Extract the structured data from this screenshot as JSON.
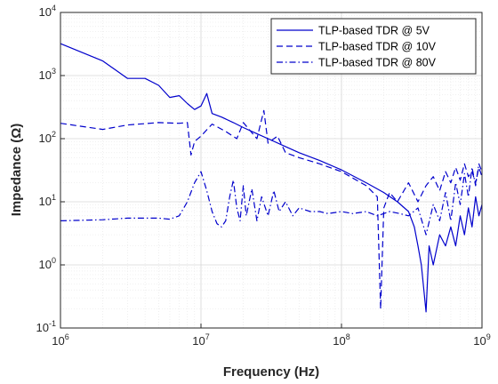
{
  "chart_data": {
    "type": "line",
    "title": "",
    "xlabel": "Frequency (Hz)",
    "ylabel": "Impedance  (Ω)",
    "xscale": "log",
    "yscale": "log",
    "xlim": [
      1000000,
      1000000000
    ],
    "ylim": [
      0.1,
      10000
    ],
    "x_ticks": [
      {
        "value": 1000000,
        "base": "10",
        "exp": "6"
      },
      {
        "value": 10000000,
        "base": "10",
        "exp": "7"
      },
      {
        "value": 100000000,
        "base": "10",
        "exp": "8"
      },
      {
        "value": 1000000000,
        "base": "10",
        "exp": "9"
      }
    ],
    "y_ticks": [
      {
        "value": 0.1,
        "base": "10",
        "exp": "-1"
      },
      {
        "value": 1,
        "base": "10",
        "exp": "0"
      },
      {
        "value": 10,
        "base": "10",
        "exp": "1"
      },
      {
        "value": 100,
        "base": "10",
        "exp": "2"
      },
      {
        "value": 1000,
        "base": "10",
        "exp": "3"
      },
      {
        "value": 10000,
        "base": "10",
        "exp": "4"
      }
    ],
    "grid": true,
    "minor_grid": true,
    "legend_position": "top-right",
    "line_color": "#0000cc",
    "series": [
      {
        "name": "TLP-based TDR @ 5V",
        "dash": "solid",
        "x": [
          1000000,
          2000000,
          3000000,
          4000000,
          5000000,
          6000000,
          7000000,
          8000000,
          9000000,
          10000000,
          11000000,
          12000000,
          14000000,
          17000000,
          20000000,
          25000000,
          30000000,
          40000000,
          50000000,
          70000000,
          100000000,
          150000000,
          200000000,
          250000000,
          300000000,
          330000000,
          350000000,
          370000000,
          400000000,
          420000000,
          450000000,
          500000000,
          550000000,
          600000000,
          650000000,
          700000000,
          750000000,
          800000000,
          850000000,
          900000000,
          950000000,
          1000000000
        ],
        "y": [
          3200,
          1700,
          900,
          900,
          700,
          450,
          480,
          360,
          290,
          330,
          520,
          250,
          220,
          180,
          150,
          120,
          100,
          75,
          60,
          45,
          32,
          20,
          14,
          10,
          7,
          4,
          2,
          1,
          0.18,
          2,
          1,
          3,
          2,
          4,
          2,
          6,
          3,
          8,
          4,
          12,
          6,
          9
        ]
      },
      {
        "name": "TLP-based TDR @ 10V",
        "dash": "dashed",
        "x": [
          1000000,
          2000000,
          3000000,
          5000000,
          7000000,
          8000000,
          8500000,
          9000000,
          10000000,
          12000000,
          15000000,
          18000000,
          20000000,
          25000000,
          28000000,
          30000000,
          35000000,
          40000000,
          50000000,
          70000000,
          100000000,
          150000000,
          180000000,
          190000000,
          200000000,
          220000000,
          250000000,
          300000000,
          350000000,
          400000000,
          450000000,
          500000000,
          550000000,
          600000000,
          650000000,
          700000000,
          750000000,
          800000000,
          850000000,
          900000000,
          950000000,
          1000000000
        ],
        "y": [
          175,
          140,
          165,
          180,
          175,
          180,
          55,
          90,
          110,
          170,
          130,
          100,
          180,
          100,
          280,
          85,
          110,
          60,
          50,
          40,
          30,
          18,
          12,
          0.2,
          8,
          14,
          10,
          20,
          10,
          18,
          25,
          15,
          30,
          20,
          35,
          22,
          40,
          25,
          30,
          20,
          35,
          25
        ]
      },
      {
        "name": "TLP-based TDR @ 80V",
        "dash": "dashdot",
        "x": [
          1000000,
          2000000,
          3000000,
          4000000,
          5000000,
          6000000,
          7000000,
          8000000,
          9000000,
          10000000,
          11000000,
          12000000,
          13000000,
          14000000,
          15000000,
          16000000,
          17000000,
          18000000,
          19000000,
          20000000,
          21000000,
          23000000,
          25000000,
          27000000,
          30000000,
          33000000,
          36000000,
          40000000,
          45000000,
          50000000,
          60000000,
          70000000,
          80000000,
          100000000,
          120000000,
          150000000,
          180000000,
          220000000,
          260000000,
          300000000,
          350000000,
          400000000,
          450000000,
          500000000,
          550000000,
          600000000,
          650000000,
          700000000,
          750000000,
          800000000,
          850000000,
          900000000,
          950000000,
          1000000000
        ],
        "y": [
          5,
          5.2,
          5.5,
          5.5,
          5.5,
          5.3,
          6,
          10,
          20,
          30,
          15,
          7,
          4.5,
          4,
          5,
          12,
          22,
          8,
          5,
          18,
          6,
          16,
          5,
          12,
          6,
          15,
          7,
          10,
          6,
          8,
          7,
          7,
          6.5,
          7,
          6.5,
          7,
          6,
          7,
          6.5,
          6,
          8,
          3,
          9,
          5,
          14,
          5,
          20,
          9,
          28,
          12,
          35,
          18,
          40,
          30
        ]
      }
    ]
  }
}
